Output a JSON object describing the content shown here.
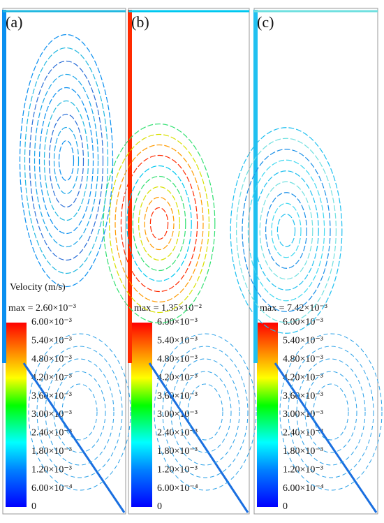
{
  "panels": [
    {
      "label": "(a)",
      "max": "max = 2.60×10⁻³"
    },
    {
      "label": "(b)",
      "max": "max = 1.35×10⁻²"
    },
    {
      "label": "(c)",
      "max": "max = 7.42×10⁻³"
    }
  ],
  "colorbar": {
    "title": "Velocity (m/s)",
    "ticks": [
      "6.00×10⁻³",
      "5.40×10⁻³",
      "4.80×10⁻³",
      "4.20×10⁻³",
      "3.60×10⁻³",
      "3.00×10⁻³",
      "2.40×10⁻³",
      "1.80×10⁻³",
      "1.20×10⁻³",
      "6.00×10⁻⁴",
      "0"
    ]
  }
}
